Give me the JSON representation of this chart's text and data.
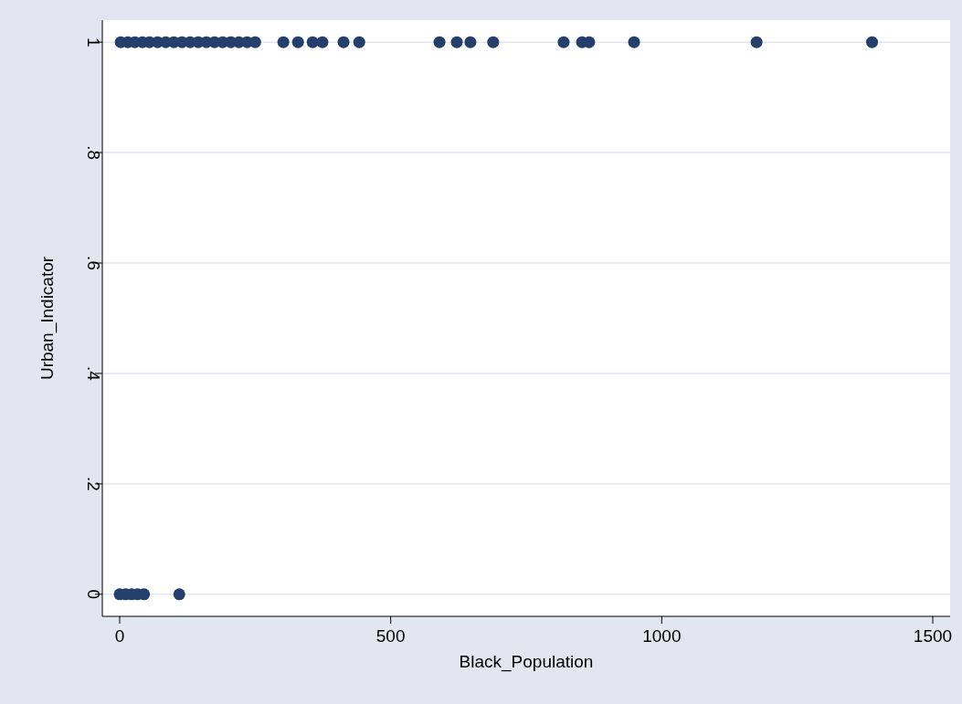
{
  "chart_data": {
    "type": "scatter",
    "xlabel": "Black_Population",
    "ylabel": "Urban_Indicator",
    "xlim": [
      -32,
      1532
    ],
    "ylim": [
      -0.04,
      1.04
    ],
    "xticks": [
      0,
      500,
      1000,
      1500
    ],
    "yticks": [
      {
        "value": 0,
        "label": "0"
      },
      {
        "value": 0.2,
        "label": ".2"
      },
      {
        "value": 0.4,
        "label": ".4"
      },
      {
        "value": 0.6,
        "label": ".6"
      },
      {
        "value": 0.8,
        "label": ".8"
      },
      {
        "value": 1,
        "label": "1"
      }
    ],
    "grid": "y",
    "marker": "circle",
    "series": [
      {
        "color": "#243f6b",
        "x": [
          2,
          15,
          28,
          42,
          55,
          70,
          85,
          100,
          115,
          130,
          145,
          160,
          175,
          190,
          205,
          220,
          235,
          250,
          302,
          329,
          356,
          374,
          413,
          442,
          590,
          622,
          647,
          689,
          819,
          853,
          866,
          949,
          1175,
          1388,
          0,
          11,
          22,
          33,
          45,
          110
        ],
        "values": [
          1,
          1,
          1,
          1,
          1,
          1,
          1,
          1,
          1,
          1,
          1,
          1,
          1,
          1,
          1,
          1,
          1,
          1,
          1,
          1,
          1,
          1,
          1,
          1,
          1,
          1,
          1,
          1,
          1,
          1,
          1,
          1,
          1,
          1,
          0,
          0,
          0,
          0,
          0,
          0
        ]
      }
    ]
  }
}
